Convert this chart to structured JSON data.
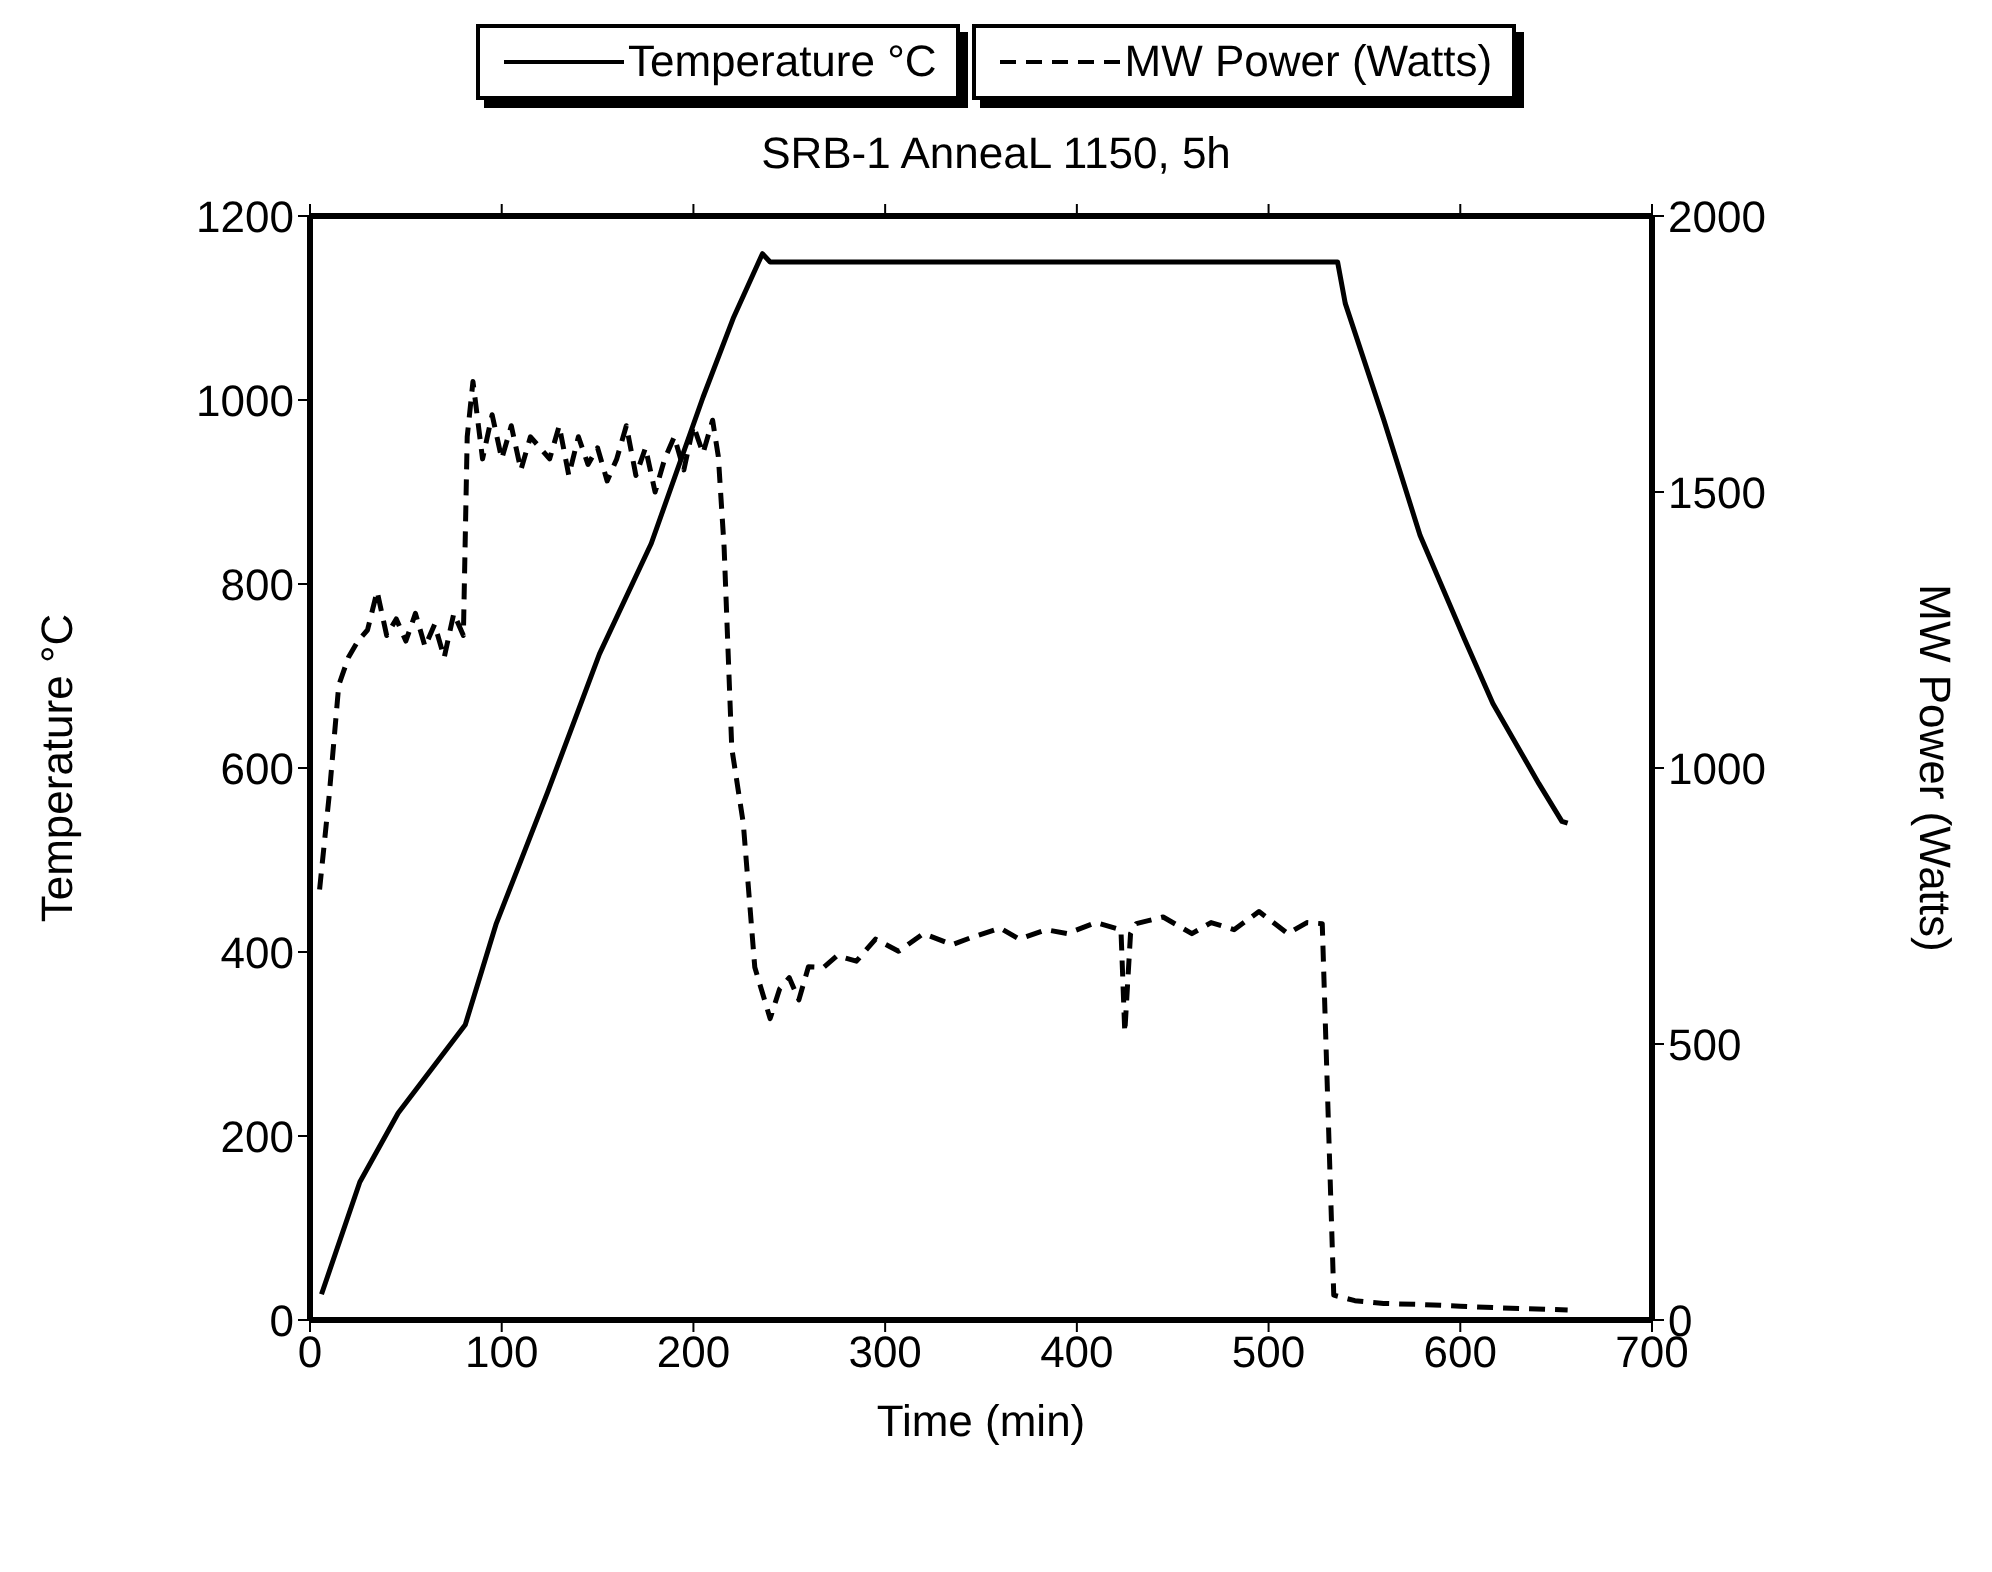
{
  "chart_data": {
    "type": "line",
    "title": "SRB-1 AnneaL 1150, 5h",
    "xlabel": "Time  (min)",
    "ylabel": "Temperature °C",
    "y2label": "MW Power (Watts)",
    "xlim": [
      0,
      700
    ],
    "xticks": [
      0,
      100,
      200,
      300,
      400,
      500,
      600,
      700
    ],
    "ylim": [
      0,
      1200
    ],
    "yticks": [
      0,
      200,
      400,
      600,
      800,
      1000,
      1200
    ],
    "y2lim": [
      0,
      2000
    ],
    "y2ticks": [
      0,
      500,
      1000,
      1500,
      2000
    ],
    "legend": "top",
    "marker": "none",
    "series": [
      {
        "name": "Temperature °C",
        "color": "#000000",
        "line_style": "solid",
        "x": [
          6,
          26,
          46,
          81,
          97,
          124,
          151,
          178,
          205,
          221,
          236,
          240,
          536,
          540,
          560,
          579,
          602,
          617,
          641,
          653,
          656
        ],
        "values": [
          28,
          150,
          225,
          321,
          430,
          574,
          724,
          844,
          1003,
          1090,
          1159,
          1150,
          1150,
          1105,
          979,
          853,
          741,
          670,
          583,
          542,
          540
        ]
      },
      {
        "name": "MW Power (Watts)",
        "color": "#000000",
        "line_style": "dashed",
        "axis": "y2",
        "x": [
          5,
          10,
          15,
          20,
          25,
          30,
          35,
          40,
          45,
          50,
          55,
          60,
          65,
          70,
          75,
          80,
          82,
          85,
          90,
          95,
          100,
          105,
          110,
          115,
          120,
          125,
          130,
          135,
          140,
          145,
          150,
          155,
          160,
          165,
          170,
          175,
          180,
          185,
          190,
          195,
          200,
          205,
          210,
          213,
          216,
          220,
          226,
          232,
          240,
          245,
          250,
          255,
          260,
          268,
          275,
          285,
          295,
          307,
          320,
          335,
          345,
          360,
          370,
          384,
          395,
          410,
          423,
          425,
          428,
          431,
          445,
          460,
          470,
          482,
          495,
          510,
          520,
          528,
          534,
          545,
          560,
          580,
          600,
          620,
          640,
          656
        ],
        "values": [
          780,
          950,
          1150,
          1200,
          1230,
          1250,
          1320,
          1240,
          1270,
          1230,
          1280,
          1220,
          1260,
          1200,
          1280,
          1240,
          1600,
          1700,
          1560,
          1640,
          1560,
          1620,
          1540,
          1600,
          1580,
          1560,
          1620,
          1530,
          1600,
          1550,
          1580,
          1520,
          1560,
          1620,
          1530,
          1580,
          1500,
          1560,
          1600,
          1540,
          1620,
          1570,
          1630,
          1564,
          1400,
          1036,
          900,
          639,
          546,
          600,
          620,
          580,
          640,
          639,
          660,
          650,
          690,
          668,
          700,
          680,
          693,
          710,
          690,
          707,
          700,
          720,
          707,
          521,
          700,
          718,
          730,
          700,
          720,
          707,
          740,
          700,
          720,
          718,
          45,
          35,
          30,
          28,
          25,
          22,
          20,
          18
        ]
      }
    ]
  }
}
